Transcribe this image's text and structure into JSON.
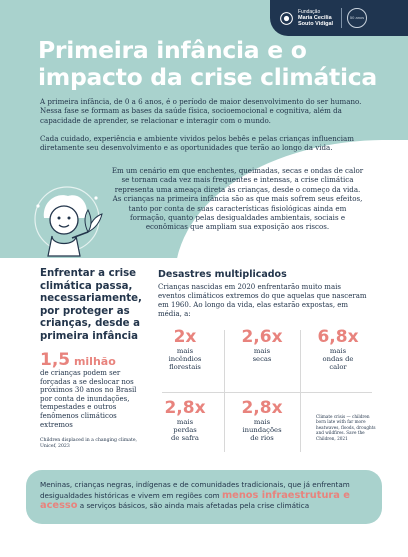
{
  "logo": {
    "line1": "Fundação",
    "line2": "Maria Cecilia",
    "line3": "Souto Vidigal",
    "seal": "50 anos"
  },
  "title": "Primeira infância e o impacto da crise climática",
  "intro": {
    "p1": "A primeira infância, de 0 a 6 anos, é o período de maior desenvolvimento do ser humano. Nessa fase se formam as bases da saúde física, socioemocional e cognitiva, além da capacidade de aprender, se relacionar e interagir com o mundo.",
    "p2": "Cada cuidado, experiência e ambiente vividos pelos bebês e pelas crianças influenciam diretamente seu desenvolvimento e as oportunidades que terão ao longo da vida.",
    "p3": "Em um cenário em que enchentes, queimadas, secas e ondas de calor se tornam cada vez mais frequentes e intensas, a crise climática representa uma ameaça direta às crianças, desde o começo da vida. As crianças na primeira infância são as que mais sofrem seus efeitos, tanto por conta de suas características fisiológicas ainda em formação, quanto pelas desigualdades ambientais, sociais e econômicas que ampliam sua exposição aos riscos."
  },
  "left": {
    "heading": "Enfrentar a crise climática passa, necessariamente, por proteger as crianças, desde a primeira infância",
    "big_number": "1,5",
    "big_unit": " milhão",
    "body": "de crianças podem ser forçadas a se deslocar nos próximos 30 anos no Brasil por conta de inundações, tempestades e outros fenômenos climáticos extremos",
    "source": "Children displaced in a changing climate, Unicef, 2023"
  },
  "right": {
    "heading": "Desastres multiplicados",
    "body": "Crianças nascidas em 2020 enfrentarão muito mais eventos climáticos extremos do que aquelas que nasceram em 1960. Ao longo da vida, elas estarão expostas, em média, a:",
    "stats": [
      {
        "value": "2x",
        "label": "mais incêndios florestais"
      },
      {
        "value": "2,6x",
        "label": "mais secas"
      },
      {
        "value": "6,8x",
        "label": "mais ondas de calor"
      },
      {
        "value": "2,8x",
        "label": "mais perdas de safra"
      },
      {
        "value": "2,8x",
        "label": "mais inundações de rios"
      }
    ],
    "note": "Climate crisis — children born late with far more heatwaves, floods, droughts and wildfires. Save the Children, 2021"
  },
  "bottom": {
    "before": "Meninas, crianças negras, indígenas e de comunidades tradicionais, que já enfrentam desigualdades históricas e vivem em regiões com ",
    "highlight": "menos infraestrutura e acesso",
    "after": " a serviços básicos, são ainda mais afetadas pela crise climática"
  },
  "colors": {
    "teal": "#a9d2cd",
    "navy": "#23354b",
    "coral": "#e8837d",
    "banner": "#1f3550"
  }
}
